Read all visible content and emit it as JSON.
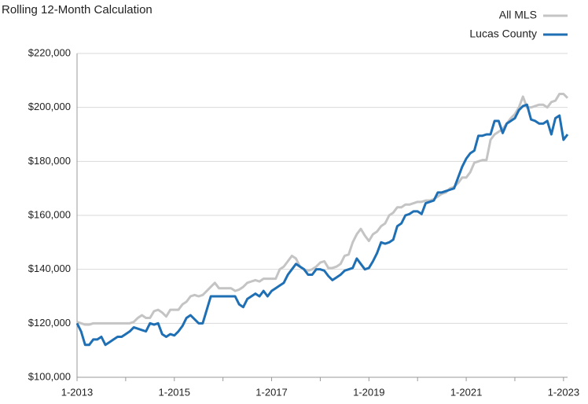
{
  "chart_data": {
    "type": "line",
    "title": "Rolling 12-Month Calculation",
    "categories": [
      "1-2013",
      null,
      null,
      null,
      null,
      null,
      null,
      null,
      null,
      null,
      null,
      null,
      null,
      null,
      null,
      null,
      null,
      null,
      null,
      null,
      null,
      null,
      null,
      null,
      "1-2015",
      null,
      null,
      null,
      null,
      null,
      null,
      null,
      null,
      null,
      null,
      null,
      null,
      null,
      null,
      null,
      null,
      null,
      null,
      null,
      null,
      null,
      null,
      null,
      "1-2017",
      null,
      null,
      null,
      null,
      null,
      null,
      null,
      null,
      null,
      null,
      null,
      null,
      null,
      null,
      null,
      null,
      null,
      null,
      null,
      null,
      null,
      null,
      null,
      "1-2019",
      null,
      null,
      null,
      null,
      null,
      null,
      null,
      null,
      null,
      null,
      null,
      null,
      null,
      null,
      null,
      null,
      null,
      null,
      null,
      null,
      null,
      null,
      null,
      "1-2021",
      null,
      null,
      null,
      null,
      null,
      null,
      null,
      null,
      null,
      null,
      null,
      null,
      null,
      null,
      null,
      null,
      null,
      null,
      null,
      null,
      null,
      null,
      null,
      "1-2023",
      null
    ],
    "series": [
      {
        "name": "All MLS",
        "color": "#c4c4c4",
        "values": [
          120500,
          120000,
          119500,
          119500,
          120000,
          120000,
          120000,
          120000,
          120000,
          120000,
          120000,
          120000,
          120000,
          120000,
          120500,
          122000,
          123000,
          122000,
          122000,
          124500,
          125000,
          124000,
          122500,
          125000,
          125000,
          125000,
          127000,
          128000,
          130000,
          130500,
          130000,
          130500,
          132000,
          133500,
          135000,
          133000,
          133000,
          133000,
          133000,
          132000,
          132500,
          133500,
          135000,
          135500,
          136000,
          135500,
          136500,
          136500,
          136500,
          136500,
          140000,
          141000,
          143000,
          145000,
          144000,
          141000,
          140000,
          139500,
          140000,
          141000,
          142500,
          143000,
          140500,
          140500,
          141000,
          142000,
          145000,
          145500,
          150000,
          153000,
          155000,
          152500,
          150500,
          153000,
          154000,
          156000,
          157000,
          160000,
          161000,
          163000,
          163000,
          164000,
          164000,
          164500,
          165000,
          165000,
          165500,
          165500,
          166000,
          167000,
          168000,
          168500,
          170000,
          170500,
          172000,
          174000,
          174000,
          176000,
          179500,
          180000,
          180500,
          180500,
          188000,
          190000,
          191000,
          192000,
          194000,
          196000,
          197500,
          200000,
          204000,
          200000,
          200000,
          200500,
          201000,
          201000,
          200000,
          202000,
          202500,
          205000,
          205000,
          203500
        ]
      },
      {
        "name": "Lucas County",
        "color": "#1f6fb4",
        "values": [
          120000,
          117000,
          112000,
          112000,
          114000,
          114000,
          115000,
          112000,
          113000,
          114000,
          115000,
          115000,
          116000,
          117000,
          118500,
          118000,
          117500,
          117000,
          120000,
          119500,
          120000,
          116000,
          115000,
          116000,
          115500,
          117000,
          119000,
          122000,
          123000,
          121500,
          120000,
          120000,
          125000,
          130000,
          130000,
          130000,
          130000,
          130000,
          130000,
          130000,
          127000,
          126000,
          129000,
          130000,
          131000,
          130000,
          132000,
          130000,
          132000,
          133000,
          134000,
          135000,
          138000,
          140000,
          142000,
          141000,
          140000,
          138000,
          138000,
          140000,
          140000,
          139500,
          137500,
          136000,
          137000,
          138000,
          139500,
          140000,
          140500,
          144000,
          142000,
          140000,
          140500,
          143000,
          146000,
          150000,
          149500,
          150000,
          151000,
          156000,
          157000,
          160000,
          160500,
          161500,
          161500,
          160500,
          164500,
          165000,
          165500,
          168500,
          168500,
          169000,
          169500,
          170000,
          174000,
          178000,
          181000,
          183000,
          184000,
          189500,
          189500,
          190000,
          190000,
          195000,
          195000,
          190500,
          194000,
          195000,
          196000,
          199000,
          200500,
          201000,
          195500,
          195000,
          194000,
          194000,
          195000,
          190000,
          196000,
          197000,
          188000,
          190000
        ]
      }
    ],
    "ylim": [
      100000,
      220000
    ],
    "yticks": [
      {
        "value": 100000,
        "label": "$100,000"
      },
      {
        "value": 120000,
        "label": "$120,000"
      },
      {
        "value": 140000,
        "label": "$140,000"
      },
      {
        "value": 160000,
        "label": "$160,000"
      },
      {
        "value": 180000,
        "label": "$180,000"
      },
      {
        "value": 200000,
        "label": "$200,000"
      },
      {
        "value": 220000,
        "label": "$220,000"
      }
    ],
    "grid": true,
    "legend": "top-right"
  }
}
